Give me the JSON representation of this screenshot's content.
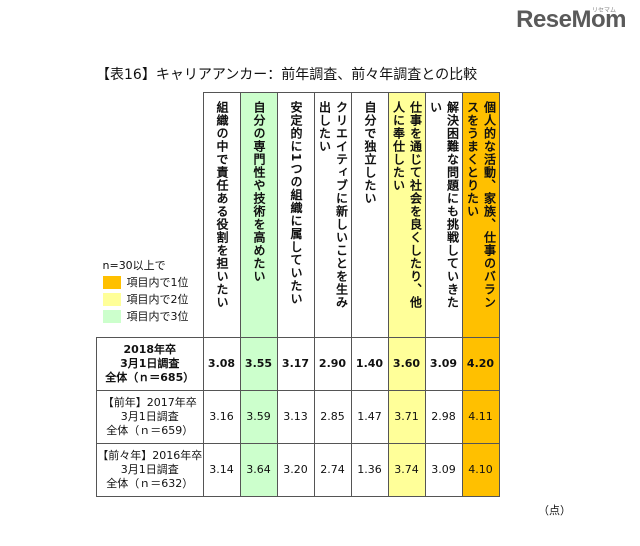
{
  "logo": "ReseMom",
  "logo_ruby": "リセマム",
  "title": "【表16】キャリアアンカー：前年調査、前々年調査との比較",
  "legend": {
    "heading": "n=30以上で",
    "items": [
      {
        "label": "項目内で1位",
        "color": "#ffc000"
      },
      {
        "label": "項目内で2位",
        "color": "#ffff99"
      },
      {
        "label": "項目内で3位",
        "color": "#ccffcc"
      }
    ]
  },
  "columns": [
    "組織の中で責任ある役割を担いたい",
    "自分の専門性や技術を高めたい",
    "安定的に1つの組織に属していたい",
    "クリエイティブに新しいことを生み出したい",
    "自分で独立したい",
    "仕事を通じて社会を良くしたり、他人に奉仕したい",
    "解決困難な問題にも挑戦していきたい",
    "個人的な活動、家族、仕事のバランスをうまくとりたい"
  ],
  "rows": [
    {
      "label": [
        "2018年卒",
        "3月1日調査",
        "全体（ｎ＝685）"
      ],
      "values": [
        "3.08",
        "3.55",
        "3.17",
        "2.90",
        "1.40",
        "3.60",
        "3.09",
        "4.20"
      ]
    },
    {
      "label": [
        "【前年】2017年卒",
        "3月1日調査",
        "全体（ｎ＝659）"
      ],
      "values": [
        "3.16",
        "3.59",
        "3.13",
        "2.85",
        "1.47",
        "3.71",
        "2.98",
        "4.11"
      ]
    },
    {
      "label": [
        "【前々年】2016年卒",
        "3月1日調査",
        "全体（ｎ＝632）"
      ],
      "values": [
        "3.14",
        "3.64",
        "3.20",
        "2.74",
        "1.36",
        "3.74",
        "3.09",
        "4.10"
      ]
    }
  ],
  "unit": "（点）"
}
